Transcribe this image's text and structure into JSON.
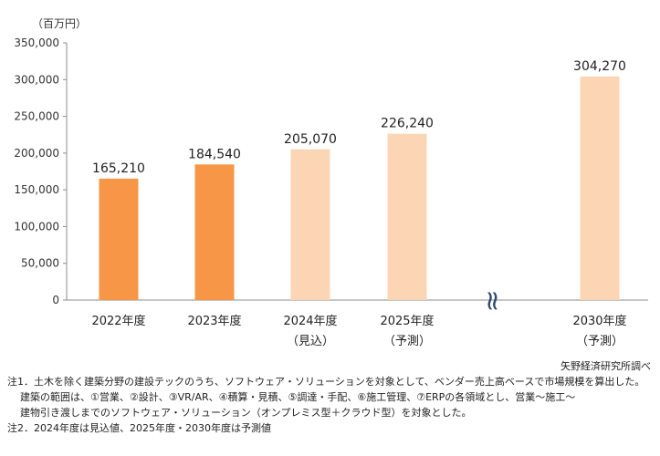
{
  "chart_data": {
    "type": "bar",
    "unit_label": "（百万円）",
    "categories": [
      {
        "line1": "2022年度",
        "line2": ""
      },
      {
        "line1": "2023年度",
        "line2": ""
      },
      {
        "line1": "2024年度",
        "line2": "（見込）"
      },
      {
        "line1": "2025年度",
        "line2": "（予測）"
      },
      {
        "line1": "2030年度",
        "line2": "（予測）"
      }
    ],
    "values": [
      165210,
      184540,
      205070,
      226240,
      304270
    ],
    "value_labels": [
      "165,210",
      "184,540",
      "205,070",
      "226,240",
      "304,270"
    ],
    "bar_kind": [
      "actual",
      "actual",
      "forecast",
      "forecast",
      "forecast"
    ],
    "colors": {
      "actual": "#f79646",
      "forecast": "#fcd5b4"
    },
    "axis_break": "≈",
    "ylim": [
      0,
      350000
    ],
    "yticks": [
      0,
      50000,
      100000,
      150000,
      200000,
      250000,
      300000,
      350000
    ],
    "ytick_labels": [
      "0",
      "50,000",
      "100,000",
      "150,000",
      "200,000",
      "250,000",
      "300,000",
      "350,000"
    ],
    "grid": false
  },
  "source": "矢野経済研究所調べ",
  "notes": [
    "注1．土木を除く建築分野の建設テックのうち、ソフトウェア・ソリューションを対象として、ベンダー売上高ベースで市場規模を算出した。",
    "建築の範囲は、①営業、②設計、③VR/AR、④積算・見積、⑤調達・手配、⑥施工管理、⑦ERPの各領域とし、営業〜施工〜",
    "建物引き渡しまでのソフトウェア・ソリューション（オンプレミス型＋クラウド型）を対象とした。",
    "注2．2024年度は見込値、2025年度・2030年度は予測値"
  ]
}
